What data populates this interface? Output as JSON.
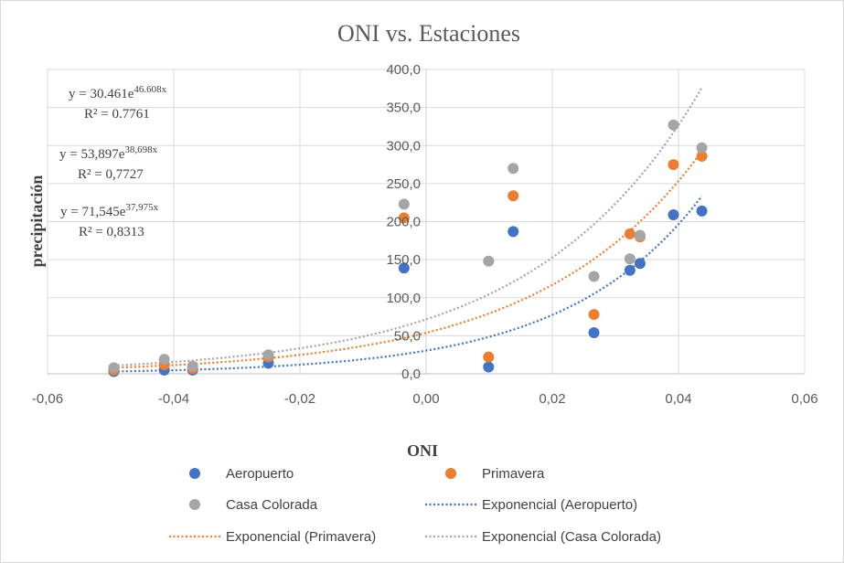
{
  "chart_data": {
    "type": "scatter",
    "title": "ONI vs. Estaciones",
    "xlabel": "ONI",
    "ylabel": "precipitación",
    "xlim": [
      -0.06,
      0.06
    ],
    "ylim": [
      0,
      400
    ],
    "x_ticks": [
      "-0,06",
      "-0,04",
      "-0,02",
      "0,00",
      "0,02",
      "0,04",
      "0,06"
    ],
    "y_ticks": [
      "0,0",
      "50,0",
      "100,0",
      "150,0",
      "200,0",
      "250,0",
      "300,0",
      "350,0",
      "400,0"
    ],
    "x_tick_values": [
      -0.06,
      -0.04,
      -0.02,
      0.0,
      0.02,
      0.04,
      0.06
    ],
    "y_tick_values": [
      0,
      50,
      100,
      150,
      200,
      250,
      300,
      350,
      400
    ],
    "grid": true,
    "series": [
      {
        "name": "Aeropuerto",
        "color": "#4472c4",
        "x": [
          -0.0495,
          -0.0415,
          -0.037,
          -0.025,
          -0.0035,
          0.0099,
          0.0138,
          0.0266,
          0.0323,
          0.0339,
          0.0392,
          0.0437
        ],
        "y": [
          3,
          5,
          5,
          14,
          139,
          9,
          187,
          54,
          136,
          145,
          209,
          214
        ]
      },
      {
        "name": "Primavera",
        "color": "#ed7d31",
        "x": [
          -0.0495,
          -0.0415,
          -0.037,
          -0.025,
          -0.0035,
          0.0099,
          0.0138,
          0.0266,
          0.0323,
          0.0339,
          0.0392,
          0.0437
        ],
        "y": [
          5,
          12,
          7,
          22,
          205,
          22,
          234,
          78,
          184,
          180,
          275,
          286
        ]
      },
      {
        "name": "Casa Colorada",
        "color": "#a5a5a5",
        "x": [
          -0.0495,
          -0.0415,
          -0.037,
          -0.025,
          -0.0035,
          0.0099,
          0.0138,
          0.0266,
          0.0323,
          0.0339,
          0.0392,
          0.0437
        ],
        "y": [
          8,
          19,
          10,
          25,
          223,
          148,
          270,
          128,
          151,
          182,
          327,
          297
        ]
      }
    ],
    "trendlines": [
      {
        "name": "Exponencial (Aeropuerto)",
        "color": "#4472c4",
        "a": 30.461,
        "b": 46.608,
        "x_range": [
          -0.0495,
          0.0437
        ],
        "equation_base": "y = 30.461e",
        "equation_exp": "46.608x",
        "r2": "R² = 0.7761"
      },
      {
        "name": "Exponencial (Primavera)",
        "color": "#ed7d31",
        "a": 53.897,
        "b": 38.698,
        "x_range": [
          -0.0495,
          0.0437
        ],
        "equation_base": "y = 53,897e",
        "equation_exp": "38,698x",
        "r2": "R² = 0,7727"
      },
      {
        "name": "Exponencial (Casa Colorada)",
        "color": "#a5a5a5",
        "a": 71.545,
        "b": 37.975,
        "x_range": [
          -0.0495,
          0.0437
        ],
        "equation_base": "y = 71,545e",
        "equation_exp": "37,975x",
        "r2": "R² = 0,8313"
      }
    ],
    "legend_position": "bottom"
  }
}
